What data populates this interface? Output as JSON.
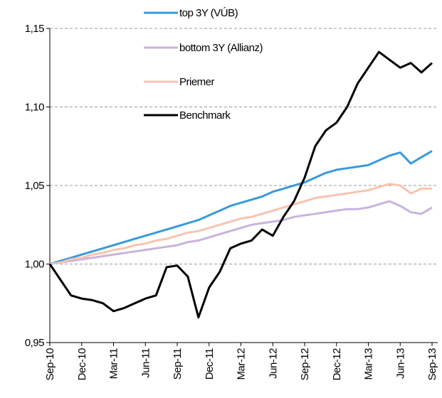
{
  "chart_data": {
    "type": "line",
    "categories": [
      "Sep-10",
      null,
      null,
      "Dec-10",
      null,
      null,
      "Mar-11",
      null,
      null,
      "Jun-11",
      null,
      null,
      "Sep-11",
      null,
      null,
      "Dec-11",
      null,
      null,
      "Mar-12",
      null,
      null,
      "Jun-12",
      null,
      null,
      "Sep-12",
      null,
      null,
      "Dec-12",
      null,
      null,
      "Mar-13",
      null,
      null,
      "Jun-13",
      null,
      null,
      "Sep-13"
    ],
    "series": [
      {
        "name": "top 3Y (VÚB)",
        "color": "#3a9ad9",
        "values": [
          1.0,
          1.002,
          1.004,
          1.006,
          1.008,
          1.01,
          1.012,
          1.014,
          1.016,
          1.018,
          1.02,
          1.022,
          1.024,
          1.026,
          1.028,
          1.031,
          1.034,
          1.037,
          1.039,
          1.041,
          1.043,
          1.046,
          1.048,
          1.05,
          1.052,
          1.055,
          1.058,
          1.06,
          1.061,
          1.062,
          1.063,
          1.066,
          1.069,
          1.071,
          1.064,
          1.068,
          1.072
        ]
      },
      {
        "name": "bottom 3Y (Allianz)",
        "color": "#c9b3dd",
        "values": [
          1.0,
          1.001,
          1.002,
          1.003,
          1.004,
          1.005,
          1.006,
          1.007,
          1.008,
          1.009,
          1.01,
          1.011,
          1.012,
          1.014,
          1.015,
          1.017,
          1.019,
          1.021,
          1.023,
          1.025,
          1.026,
          1.027,
          1.028,
          1.03,
          1.031,
          1.032,
          1.033,
          1.034,
          1.035,
          1.035,
          1.036,
          1.038,
          1.04,
          1.037,
          1.033,
          1.032,
          1.036
        ]
      },
      {
        "name": "Priemer",
        "color": "#f7c4b0",
        "values": [
          1.0,
          1.001,
          1.003,
          1.004,
          1.006,
          1.007,
          1.009,
          1.01,
          1.012,
          1.013,
          1.015,
          1.016,
          1.018,
          1.02,
          1.021,
          1.023,
          1.025,
          1.027,
          1.029,
          1.03,
          1.032,
          1.034,
          1.036,
          1.038,
          1.04,
          1.042,
          1.043,
          1.044,
          1.045,
          1.046,
          1.047,
          1.049,
          1.051,
          1.05,
          1.045,
          1.048,
          1.048
        ]
      },
      {
        "name": "Benchmark",
        "color": "#000000",
        "values": [
          1.0,
          0.99,
          0.98,
          0.978,
          0.977,
          0.975,
          0.97,
          0.972,
          0.975,
          0.978,
          0.98,
          0.998,
          0.999,
          0.992,
          0.966,
          0.985,
          0.995,
          1.01,
          1.013,
          1.015,
          1.022,
          1.018,
          1.03,
          1.04,
          1.055,
          1.075,
          1.085,
          1.09,
          1.1,
          1.115,
          1.125,
          1.135,
          1.13,
          1.125,
          1.128,
          1.122,
          1.128
        ]
      }
    ],
    "ylim": [
      0.95,
      1.15
    ],
    "yticks": [
      {
        "value": 0.95,
        "label": "0,95"
      },
      {
        "value": 1.0,
        "label": "1,00"
      },
      {
        "value": 1.05,
        "label": "1,05"
      },
      {
        "value": 1.1,
        "label": "1,10"
      },
      {
        "value": 1.15,
        "label": "1,15"
      }
    ],
    "grid": true,
    "legend": "top"
  }
}
